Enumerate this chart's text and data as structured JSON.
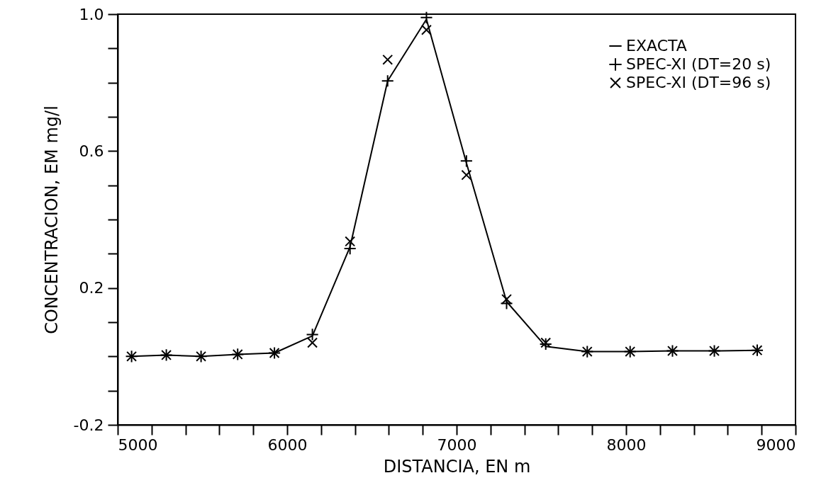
{
  "chart_data": {
    "type": "line",
    "xlabel": "DISTANCIA, EN m",
    "ylabel": "CONCENTRACION, EM mg/l",
    "x": [
      5082,
      5287,
      5492,
      5708,
      5925,
      6149,
      6371,
      6593,
      6822,
      7058,
      7295,
      7526,
      7771,
      8024,
      8274,
      8521,
      8774
    ],
    "series": [
      {
        "name": "EXACTA",
        "color": "#000000",
        "marker": "none",
        "line_style": "solid",
        "values": [
          0.0,
          0.004,
          0.0,
          0.006,
          0.01,
          0.06,
          0.32,
          0.805,
          0.985,
          0.565,
          0.16,
          0.029,
          0.014,
          0.014,
          0.016,
          0.016,
          0.018
        ]
      },
      {
        "name": "SPEC-XI (DT=20 s)",
        "color": "#000000",
        "type": "scatter",
        "marker": "cross",
        "values": [
          0.0,
          0.004,
          0.0,
          0.006,
          0.01,
          0.064,
          0.315,
          0.805,
          0.99,
          0.571,
          0.155,
          0.036,
          0.014,
          0.014,
          0.016,
          0.016,
          0.018
        ]
      },
      {
        "name": "SPEC-XI (DT=96 s)",
        "color": "#000000",
        "type": "scatter",
        "marker": "x",
        "values": [
          0.0,
          0.004,
          0.0,
          0.006,
          0.01,
          0.04,
          0.336,
          0.867,
          0.954,
          0.53,
          0.167,
          0.04,
          0.014,
          0.014,
          0.016,
          0.016,
          0.018
        ]
      }
    ],
    "xlim": [
      5000,
      9000
    ],
    "xticks": [
      5000,
      {
        "value": 5200,
        "label": null
      },
      {
        "value": 5400,
        "label": null
      },
      {
        "value": 5600,
        "label": null
      },
      {
        "value": 5800,
        "label": null
      },
      6000,
      {
        "value": 6200,
        "label": null
      },
      {
        "value": 6400,
        "label": null
      },
      {
        "value": 6600,
        "label": null
      },
      {
        "value": 6800,
        "label": null
      },
      7000,
      {
        "value": 7200,
        "label": null
      },
      {
        "value": 7400,
        "label": null
      },
      {
        "value": 7600,
        "label": null
      },
      {
        "value": 7800,
        "label": null
      },
      8000,
      {
        "value": 8200,
        "label": null
      },
      {
        "value": 8400,
        "label": null
      },
      {
        "value": 8600,
        "label": null
      },
      {
        "value": 8800,
        "label": null
      },
      9000
    ],
    "ylim": [
      -0.2,
      1.0
    ],
    "yticks": [
      -0.2,
      {
        "value": -0.1,
        "label": null
      },
      {
        "value": 0,
        "label": null
      },
      {
        "value": 0.1,
        "label": null
      },
      0.2,
      {
        "value": 0.3,
        "label": null
      },
      {
        "value": 0.4,
        "label": null
      },
      {
        "value": 0.5,
        "label": null
      },
      0.6,
      {
        "value": 0.7,
        "label": null
      },
      {
        "value": 0.8,
        "label": null
      },
      {
        "value": 0.9,
        "label": null
      },
      {
        "value": 1.0,
        "label": "1.0"
      }
    ],
    "grid": false,
    "legend": "top right"
  }
}
